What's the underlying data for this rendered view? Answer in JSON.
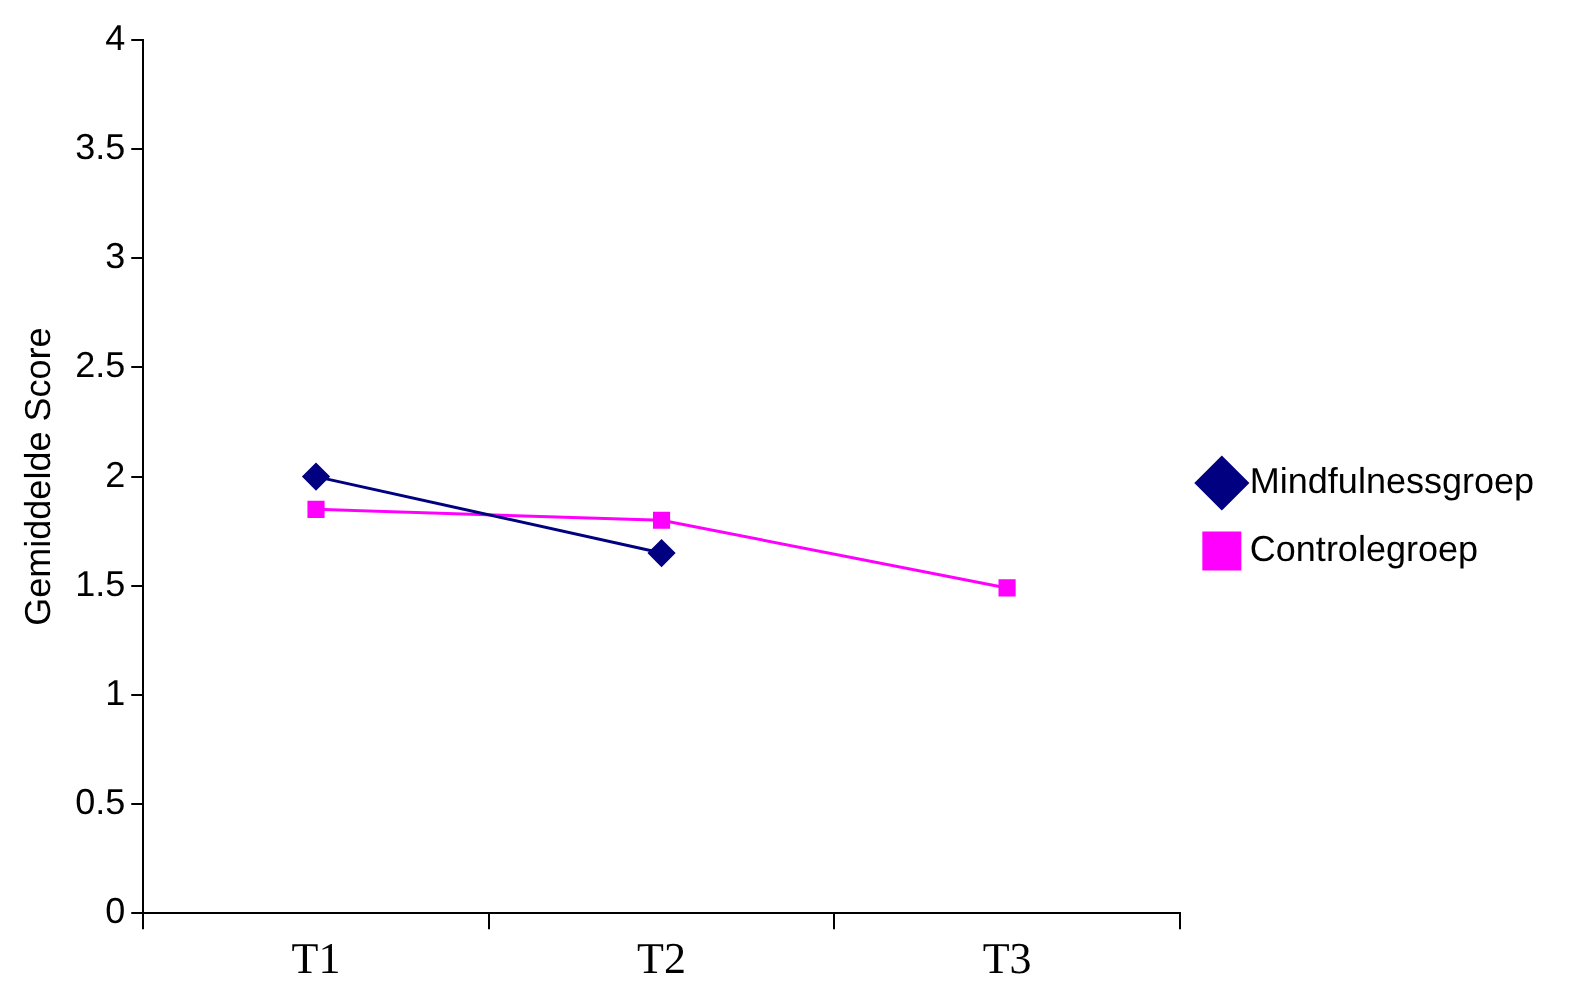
{
  "chart_data": {
    "type": "line",
    "ylabel": "Gemiddelde Score",
    "categories": [
      "T1",
      "T2",
      "T3"
    ],
    "series": [
      {
        "name": "Mindfulnessgroep",
        "color": "#000080",
        "marker": "diamond",
        "values": [
          2.0,
          1.65,
          null
        ]
      },
      {
        "name": "Controlegroep",
        "color": "#ff00ff",
        "marker": "square",
        "values": [
          1.85,
          1.8,
          1.49
        ]
      }
    ],
    "ylim": [
      0,
      4
    ],
    "yticks": [
      0,
      0.5,
      1,
      1.5,
      2,
      2.5,
      3,
      3.5,
      4
    ],
    "grid": false,
    "legend": "right",
    "line_style": "solid"
  }
}
